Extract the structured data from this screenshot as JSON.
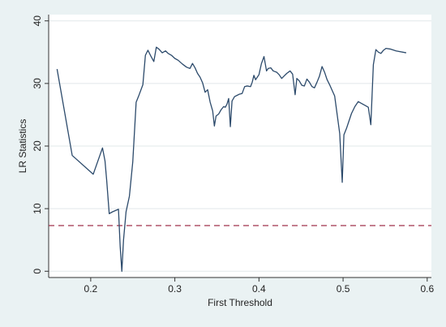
{
  "chart_data": {
    "type": "line",
    "title": "",
    "xlabel": "First Threshold",
    "ylabel": "LR Statistics",
    "xlim": [
      0.15,
      0.605
    ],
    "ylim": [
      -1,
      41
    ],
    "xticks": [
      0.2,
      0.3,
      0.4,
      0.5,
      0.6
    ],
    "xtick_labels": [
      "0.2",
      "0.3",
      "0.4",
      "0.5",
      "0.6"
    ],
    "yticks": [
      0,
      10,
      20,
      30,
      40
    ],
    "ytick_labels": [
      "0",
      "10",
      "20",
      "30",
      "40"
    ],
    "grid": "horizontal",
    "legend": "none",
    "colors": {
      "line": "#2c4a6b",
      "reference_line": "#a0304a",
      "plot_background": "#ffffff",
      "outer_background": "#eaf2f3",
      "grid": "#e2e8ea"
    },
    "reference_line": {
      "y": 7.3,
      "style": "dashed"
    },
    "series": [
      {
        "x": [
          0.16,
          0.178,
          0.203,
          0.214,
          0.217,
          0.219,
          0.222,
          0.226,
          0.233,
          0.235,
          0.237,
          0.239,
          0.242,
          0.246,
          0.25,
          0.254,
          0.257,
          0.262,
          0.265,
          0.268,
          0.271,
          0.275,
          0.278,
          0.281,
          0.285,
          0.289,
          0.292,
          0.296,
          0.3,
          0.304,
          0.309,
          0.314,
          0.318,
          0.321,
          0.324,
          0.327,
          0.33,
          0.333,
          0.336,
          0.339,
          0.342,
          0.345,
          0.347,
          0.349,
          0.352,
          0.355,
          0.358,
          0.36,
          0.362,
          0.364,
          0.366,
          0.368,
          0.371,
          0.374,
          0.377,
          0.38,
          0.383,
          0.386,
          0.39,
          0.392,
          0.394,
          0.396,
          0.398,
          0.4,
          0.403,
          0.406,
          0.409,
          0.411,
          0.414,
          0.417,
          0.421,
          0.424,
          0.427,
          0.43,
          0.433,
          0.437,
          0.44,
          0.443,
          0.445,
          0.448,
          0.451,
          0.454,
          0.457,
          0.46,
          0.463,
          0.466,
          0.469,
          0.472,
          0.475,
          0.478,
          0.481,
          0.484,
          0.487,
          0.49,
          0.493,
          0.496,
          0.499,
          0.501,
          0.504,
          0.507,
          0.51,
          0.514,
          0.518,
          0.522,
          0.526,
          0.53,
          0.533,
          0.536,
          0.539,
          0.542,
          0.545,
          0.548,
          0.551,
          0.556,
          0.563,
          0.575
        ],
        "y": [
          32.3,
          18.5,
          15.5,
          19.7,
          17.6,
          14.5,
          9.2,
          9.5,
          9.9,
          4.0,
          0.0,
          5.0,
          9.5,
          12.0,
          17.5,
          27.0,
          28.0,
          29.8,
          34.5,
          35.3,
          34.5,
          33.5,
          35.8,
          35.5,
          34.9,
          35.2,
          34.8,
          34.5,
          34.0,
          33.7,
          33.1,
          32.6,
          32.4,
          33.2,
          32.5,
          31.6,
          31.0,
          30.1,
          28.6,
          29.0,
          27.0,
          25.6,
          23.2,
          24.8,
          25.1,
          25.8,
          26.3,
          26.2,
          26.7,
          27.6,
          23.1,
          27.2,
          27.9,
          28.1,
          28.3,
          28.4,
          29.5,
          29.6,
          29.5,
          30.2,
          31.3,
          30.6,
          31.0,
          31.4,
          33.2,
          34.3,
          32.0,
          32.4,
          32.5,
          32.0,
          31.8,
          31.4,
          30.8,
          31.2,
          31.6,
          32.0,
          31.5,
          28.2,
          30.8,
          30.4,
          29.7,
          29.6,
          30.7,
          30.2,
          29.5,
          29.3,
          30.2,
          31.2,
          32.7,
          31.8,
          30.6,
          29.8,
          28.9,
          28.0,
          25.0,
          22.0,
          14.2,
          21.8,
          22.8,
          24.0,
          25.2,
          26.3,
          27.1,
          26.8,
          26.5,
          26.2,
          23.4,
          33.0,
          35.4,
          35.0,
          34.8,
          35.3,
          35.6,
          35.5,
          35.2,
          34.9
        ]
      }
    ]
  }
}
